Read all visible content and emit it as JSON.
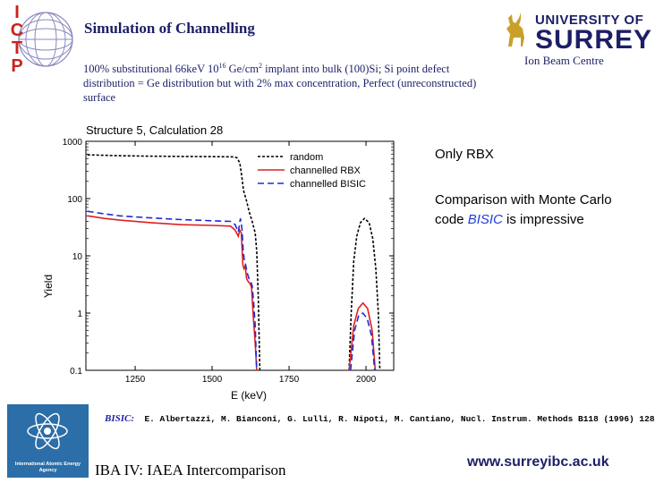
{
  "header": {
    "title": "Simulation of Channelling",
    "description_pre": "100% substitutional 66keV 10",
    "description_sup1": "16",
    "description_mid": " Ge/cm",
    "description_sup2": "2",
    "description_post": " implant into bulk (100)Si; Si point defect distribution = Ge distribution but with 2% max concentration,    Perfect (unreconstructed) surface"
  },
  "logo_left": {
    "letters": [
      "I",
      "C",
      "T",
      "P"
    ]
  },
  "logo_right": {
    "line1": "UNIVERSITY OF",
    "line2": "SURREY",
    "unit": "Ion Beam Centre"
  },
  "notes": {
    "note1": "Only RBX",
    "note2_pre": "Comparison with Monte Carlo code ",
    "note2_em": "BISIC",
    "note2_post": " is impressive"
  },
  "citation": {
    "lead": "BISIC:",
    "text": "E. Albertazzi, M. Bianconi, G. Lulli, R. Nipoti, M. Cantiano, Nucl. Instrum. Methods  B118 (1996) 128"
  },
  "footer": {
    "left": "IBA IV:  IAEA Intercomparison",
    "right": "www.surreyibc.ac.uk",
    "iaea_label": "International Atomic Energy Agency"
  },
  "chart_data": {
    "type": "line",
    "title": "Structure 5, Calculation 28",
    "xlabel": "E (keV)",
    "ylabel": "Yield",
    "xlim": [
      1090,
      2090
    ],
    "ylim": [
      0.1,
      1000
    ],
    "yscale": "log",
    "x_ticks": [
      1250,
      1500,
      1750,
      2000
    ],
    "y_ticks": [
      {
        "v": 1000,
        "label": "1000"
      },
      {
        "v": 100,
        "label": "100"
      },
      {
        "v": 10,
        "label": "10"
      },
      {
        "v": 1,
        "label": "1"
      },
      {
        "v": 0.1,
        "label": "0.1"
      }
    ],
    "legend_position": "top-right",
    "series": [
      {
        "name": "random",
        "color": "#000000",
        "dash": "3,2",
        "segments": [
          [
            [
              1095,
              580
            ],
            [
              1200,
              560
            ],
            [
              1300,
              550
            ],
            [
              1400,
              545
            ],
            [
              1500,
              540
            ],
            [
              1570,
              535
            ],
            [
              1580,
              520
            ],
            [
              1590,
              420
            ],
            [
              1596,
              250
            ],
            [
              1602,
              140
            ],
            [
              1612,
              90
            ],
            [
              1620,
              60
            ],
            [
              1630,
              40
            ],
            [
              1640,
              25
            ],
            [
              1645,
              12
            ],
            [
              1650,
              2
            ],
            [
              1655,
              0.1
            ]
          ],
          [
            [
              1945,
              0.1
            ],
            [
              1952,
              1
            ],
            [
              1960,
              8
            ],
            [
              1970,
              22
            ],
            [
              1982,
              38
            ],
            [
              1995,
              45
            ],
            [
              2010,
              38
            ],
            [
              2022,
              20
            ],
            [
              2032,
              6
            ],
            [
              2040,
              1
            ],
            [
              2045,
              0.1
            ]
          ]
        ]
      },
      {
        "name": "channelled RBX",
        "color": "#e02020",
        "dash": "",
        "segments": [
          [
            [
              1095,
              50
            ],
            [
              1150,
              45
            ],
            [
              1200,
              42
            ],
            [
              1300,
              38
            ],
            [
              1400,
              35
            ],
            [
              1500,
              34
            ],
            [
              1560,
              33
            ],
            [
              1575,
              28
            ],
            [
              1585,
              22
            ],
            [
              1590,
              28
            ],
            [
              1595,
              25
            ],
            [
              1600,
              7
            ],
            [
              1603,
              6
            ],
            [
              1606,
              6.5
            ],
            [
              1608,
              6.2
            ],
            [
              1612,
              4
            ],
            [
              1618,
              3.5
            ],
            [
              1623,
              3.3
            ],
            [
              1628,
              2.8
            ],
            [
              1633,
              1
            ],
            [
              1636,
              0.6
            ],
            [
              1640,
              0.3
            ],
            [
              1645,
              0.1
            ]
          ],
          [
            [
              1945,
              0.1
            ],
            [
              1960,
              0.6
            ],
            [
              1975,
              1.2
            ],
            [
              1990,
              1.5
            ],
            [
              2005,
              1.2
            ],
            [
              2020,
              0.5
            ],
            [
              2030,
              0.1
            ]
          ]
        ]
      },
      {
        "name": "channelled BISIC",
        "color": "#1f2bd6",
        "dash": "7,4",
        "segments": [
          [
            [
              1095,
              60
            ],
            [
              1150,
              54
            ],
            [
              1200,
              50
            ],
            [
              1300,
              46
            ],
            [
              1400,
              43
            ],
            [
              1500,
              41
            ],
            [
              1560,
              40
            ],
            [
              1575,
              35
            ],
            [
              1585,
              26
            ],
            [
              1592,
              45
            ],
            [
              1597,
              30
            ],
            [
              1601,
              12
            ],
            [
              1605,
              8
            ],
            [
              1609,
              7
            ],
            [
              1614,
              5
            ],
            [
              1620,
              4
            ],
            [
              1625,
              3.6
            ],
            [
              1630,
              3
            ],
            [
              1635,
              1.5
            ],
            [
              1640,
              0.6
            ],
            [
              1645,
              0.1
            ]
          ],
          [
            [
              1950,
              0.1
            ],
            [
              1963,
              0.5
            ],
            [
              1976,
              0.9
            ],
            [
              1990,
              1.0
            ],
            [
              2004,
              0.8
            ],
            [
              2018,
              0.4
            ],
            [
              2028,
              0.1
            ]
          ]
        ]
      }
    ]
  }
}
